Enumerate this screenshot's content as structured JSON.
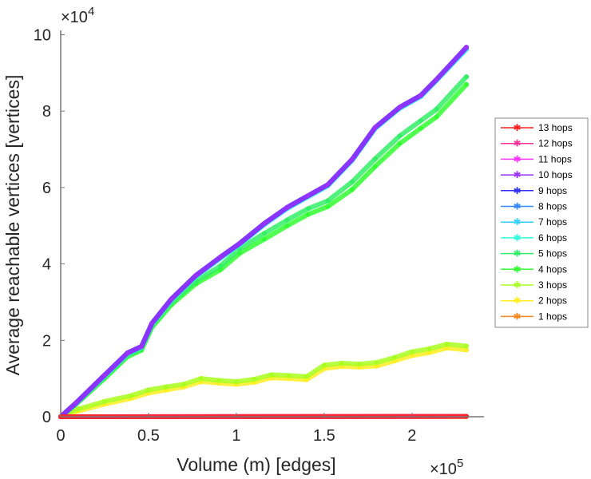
{
  "chart_data": {
    "type": "line",
    "title": "",
    "xlabel": "Volume (m) [edges]",
    "ylabel": "Average reachable vertices [vertices]",
    "x_multiplier": "×10",
    "x_multiplier_exp": "5",
    "y_multiplier": "×10",
    "y_multiplier_exp": "4",
    "xlim": [
      0,
      2.41
    ],
    "ylim": [
      0,
      10
    ],
    "xticks": [
      0,
      0.5,
      1,
      1.5,
      2
    ],
    "xtick_labels": [
      "0",
      "0.5",
      "1",
      "1.5",
      "2"
    ],
    "yticks": [
      0,
      2,
      4,
      6,
      8,
      10
    ],
    "ytick_labels": [
      "0",
      "2",
      "4",
      "6",
      "8",
      "10"
    ],
    "grid": false,
    "legend_position": "right",
    "series": [
      {
        "name": "13 hops",
        "color": "#ff2020",
        "x": [
          0,
          2.31
        ],
        "y": [
          0,
          0.01
        ]
      },
      {
        "name": "12 hops",
        "color": "#ff3399",
        "x": [
          0,
          2.31
        ],
        "y": [
          0,
          0.01
        ]
      },
      {
        "name": "11 hops",
        "color": "#ff33ff",
        "x": [
          0,
          2.31
        ],
        "y": [
          0,
          0.01
        ]
      },
      {
        "name": "10 hops",
        "color": "#9933ff",
        "x": [
          0,
          0.087,
          0.25,
          0.38,
          0.46,
          0.52,
          0.63,
          0.77,
          0.91,
          1.02,
          1.16,
          1.29,
          1.41,
          1.52,
          1.66,
          1.79,
          1.93,
          2.05,
          2.14,
          2.31
        ],
        "y": [
          0,
          0.36,
          1.09,
          1.67,
          1.84,
          2.45,
          3.08,
          3.7,
          4.18,
          4.54,
          5.06,
          5.48,
          5.79,
          6.07,
          6.74,
          7.57,
          8.1,
          8.41,
          8.83,
          9.67
        ]
      },
      {
        "name": "9 hops",
        "color": "#3333ff",
        "x": [
          0,
          0.087,
          0.25,
          0.38,
          0.46,
          0.52,
          0.63,
          0.77,
          0.91,
          1.02,
          1.16,
          1.29,
          1.41,
          1.52,
          1.66,
          1.79,
          1.93,
          2.05,
          2.14,
          2.31
        ],
        "y": [
          0,
          0.36,
          1.09,
          1.67,
          1.84,
          2.45,
          3.08,
          3.7,
          4.18,
          4.54,
          5.06,
          5.48,
          5.79,
          6.07,
          6.74,
          7.57,
          8.1,
          8.41,
          8.83,
          9.67
        ]
      },
      {
        "name": "8 hops",
        "color": "#3388ff",
        "x": [
          0,
          0.087,
          0.25,
          0.38,
          0.46,
          0.52,
          0.63,
          0.77,
          0.91,
          1.02,
          1.16,
          1.29,
          1.41,
          1.52,
          1.66,
          1.79,
          1.93,
          2.05,
          2.14,
          2.31
        ],
        "y": [
          0,
          0.36,
          1.09,
          1.67,
          1.84,
          2.45,
          3.08,
          3.7,
          4.18,
          4.54,
          5.06,
          5.48,
          5.79,
          6.07,
          6.74,
          7.57,
          8.1,
          8.41,
          8.83,
          9.67
        ]
      },
      {
        "name": "7 hops",
        "color": "#33ccff",
        "x": [
          0,
          0.087,
          0.25,
          0.38,
          0.46,
          0.52,
          0.63,
          0.77,
          0.91,
          1.02,
          1.16,
          1.29,
          1.41,
          1.52,
          1.66,
          1.79,
          1.93,
          2.05,
          2.14,
          2.31
        ],
        "y": [
          0,
          0.35,
          1.08,
          1.66,
          1.83,
          2.44,
          3.07,
          3.69,
          4.17,
          4.53,
          5.05,
          5.47,
          5.78,
          6.06,
          6.73,
          7.56,
          8.09,
          8.4,
          8.82,
          9.65
        ]
      },
      {
        "name": "6 hops",
        "color": "#33ffdd",
        "x": [
          0,
          0.087,
          0.25,
          0.38,
          0.46,
          0.52,
          0.63,
          0.77,
          0.91,
          1.02,
          1.16,
          1.29,
          1.41,
          1.52,
          1.66,
          1.79,
          1.93,
          2.05,
          2.14,
          2.31
        ],
        "y": [
          0,
          0.35,
          1.07,
          1.65,
          1.82,
          2.43,
          3.05,
          3.67,
          4.15,
          4.51,
          5.03,
          5.45,
          5.76,
          6.04,
          6.71,
          7.54,
          8.07,
          8.38,
          8.8,
          9.62
        ]
      },
      {
        "name": "5 hops",
        "color": "#33ee66",
        "x": [
          0,
          0.087,
          0.25,
          0.38,
          0.46,
          0.52,
          0.63,
          0.77,
          0.91,
          1.02,
          1.16,
          1.29,
          1.41,
          1.52,
          1.66,
          1.79,
          1.93,
          2.05,
          2.14,
          2.31
        ],
        "y": [
          0,
          0.33,
          1.03,
          1.6,
          1.78,
          2.38,
          2.98,
          3.55,
          3.95,
          4.4,
          4.8,
          5.15,
          5.45,
          5.65,
          6.15,
          6.75,
          7.35,
          7.75,
          8.05,
          8.9
        ]
      },
      {
        "name": "4 hops",
        "color": "#33ff33",
        "x": [
          0,
          0.087,
          0.25,
          0.38,
          0.46,
          0.52,
          0.63,
          0.77,
          0.91,
          1.02,
          1.16,
          1.29,
          1.41,
          1.52,
          1.66,
          1.79,
          1.93,
          2.05,
          2.14,
          2.31
        ],
        "y": [
          0,
          0.32,
          1.0,
          1.57,
          1.74,
          2.34,
          2.93,
          3.48,
          3.85,
          4.28,
          4.65,
          5.0,
          5.3,
          5.5,
          5.95,
          6.55,
          7.15,
          7.55,
          7.85,
          8.7
        ]
      },
      {
        "name": "3 hops",
        "color": "#aaff22",
        "x": [
          0,
          0.1,
          0.25,
          0.4,
          0.5,
          0.6,
          0.7,
          0.8,
          0.9,
          1.0,
          1.1,
          1.2,
          1.3,
          1.4,
          1.5,
          1.6,
          1.7,
          1.8,
          1.9,
          2.0,
          2.1,
          2.2,
          2.31
        ],
        "y": [
          0,
          0.2,
          0.4,
          0.55,
          0.7,
          0.78,
          0.85,
          1.0,
          0.95,
          0.92,
          0.98,
          1.1,
          1.08,
          1.05,
          1.35,
          1.4,
          1.38,
          1.42,
          1.55,
          1.7,
          1.78,
          1.9,
          1.85
        ]
      },
      {
        "name": "2 hops",
        "color": "#ffee22",
        "x": [
          0,
          0.1,
          0.25,
          0.4,
          0.5,
          0.6,
          0.7,
          0.8,
          0.9,
          1.0,
          1.1,
          1.2,
          1.3,
          1.4,
          1.5,
          1.6,
          1.7,
          1.8,
          1.9,
          2.0,
          2.1,
          2.2,
          2.31
        ],
        "y": [
          0,
          0.15,
          0.33,
          0.48,
          0.62,
          0.7,
          0.78,
          0.92,
          0.88,
          0.85,
          0.9,
          1.02,
          1.0,
          0.97,
          1.26,
          1.32,
          1.3,
          1.33,
          1.46,
          1.6,
          1.68,
          1.8,
          1.75
        ]
      },
      {
        "name": "1 hops",
        "color": "#ff8822",
        "x": [
          0,
          2.31
        ],
        "y": [
          0,
          0.002
        ]
      }
    ]
  }
}
